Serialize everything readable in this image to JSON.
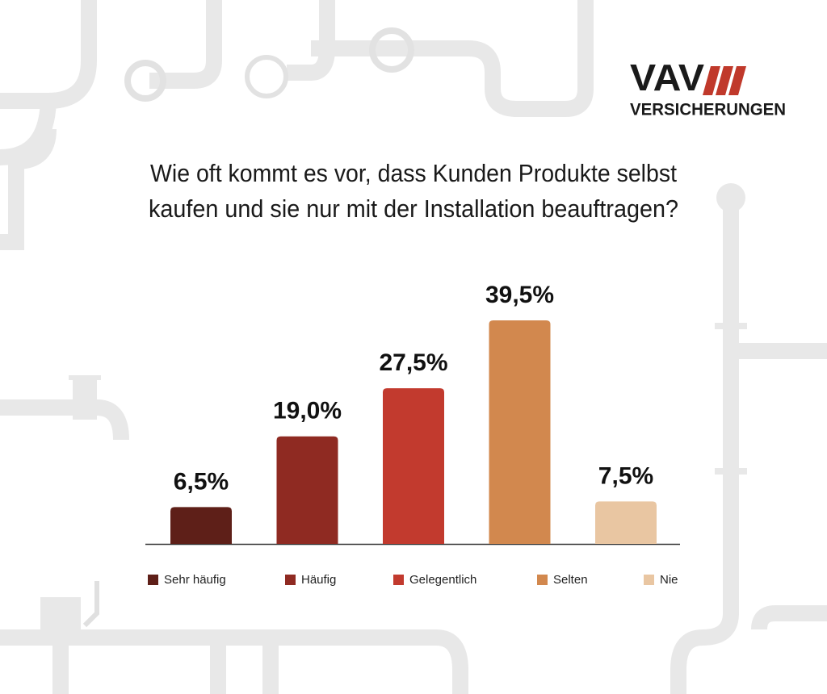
{
  "logo": {
    "name": "VAV",
    "subtitle": "VERSICHERUNGEN"
  },
  "chart_data": {
    "type": "bar",
    "title": [
      "Wie oft kommt es vor, dass Kunden Produkte selbst",
      "kaufen und sie nur mit der Installation beauftragen?"
    ],
    "categories": [
      "Sehr häufig",
      "Häufig",
      "Gelegentlich",
      "Selten",
      "Nie"
    ],
    "values": [
      6.5,
      19.0,
      27.5,
      39.5,
      7.5
    ],
    "value_labels": [
      "6,5%",
      "19,0%",
      "27,5%",
      "39,5%",
      "7,5%"
    ],
    "colors": [
      "#5e1f18",
      "#8f2a22",
      "#c23a2e",
      "#d2884e",
      "#e9c6a2"
    ],
    "legend": "bottom"
  }
}
